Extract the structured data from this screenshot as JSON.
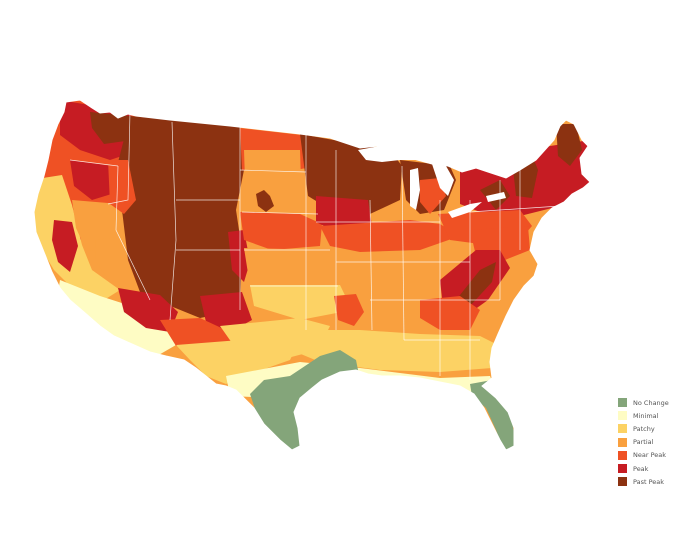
{
  "colors": {
    "no_change": "#84a57a",
    "minimal": "#fefcc4",
    "patchy": "#fcd264",
    "partial": "#f9a03f",
    "near_peak": "#ef5124",
    "peak": "#c61c23",
    "past_peak": "#8c3211",
    "border": "#ffffff",
    "background": "#ffffff"
  },
  "legend": {
    "placement": "bottom-right",
    "items": [
      {
        "label": "No Change",
        "color": "#84a57a"
      },
      {
        "label": "Minimal",
        "color": "#fefcc4"
      },
      {
        "label": "Patchy",
        "color": "#fcd264"
      },
      {
        "label": "Partial",
        "color": "#f9a03f"
      },
      {
        "label": "Near Peak",
        "color": "#ef5124"
      },
      {
        "label": "Peak",
        "color": "#c61c23"
      },
      {
        "label": "Past Peak",
        "color": "#8c3211"
      }
    ]
  }
}
